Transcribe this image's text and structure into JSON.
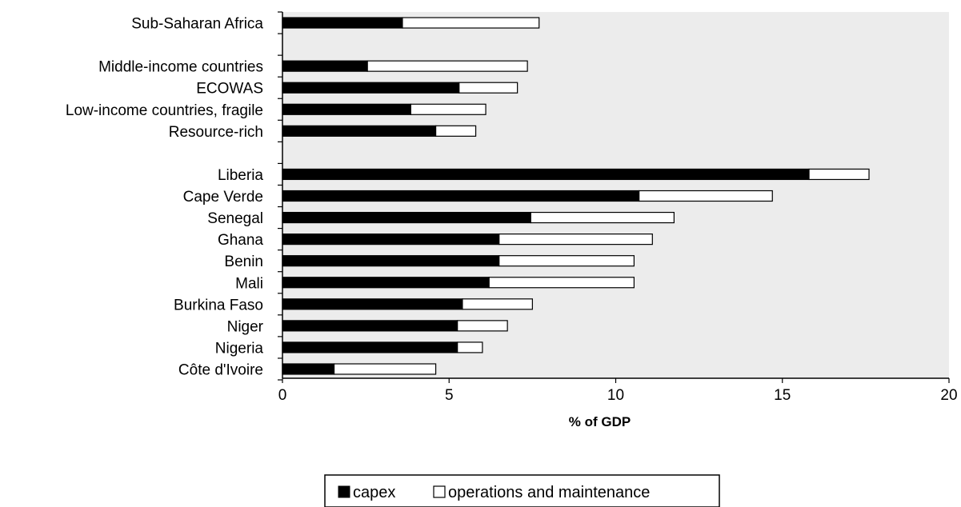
{
  "chart_data": {
    "type": "bar",
    "orientation": "horizontal",
    "stacked": true,
    "categories": [
      "Sub-Saharan Africa",
      "",
      "Middle-income countries",
      "ECOWAS",
      "Low-income countries, fragile",
      "Resource-rich",
      "",
      "Liberia",
      "Cape Verde",
      "Senegal",
      "Ghana",
      "Benin",
      "Mali",
      "Burkina Faso",
      "Niger",
      "Nigeria",
      "Côte d'Ivoire"
    ],
    "series": [
      {
        "name": "capex",
        "color": "#000000",
        "values": [
          3.6,
          null,
          2.55,
          5.3,
          3.85,
          4.6,
          null,
          15.8,
          10.7,
          7.45,
          6.5,
          6.5,
          6.2,
          5.4,
          5.25,
          5.25,
          1.55
        ]
      },
      {
        "name": "operations and maintenance",
        "color": "#ffffff",
        "values": [
          4.1,
          null,
          4.8,
          1.75,
          2.25,
          1.2,
          null,
          1.8,
          4.0,
          4.3,
          4.6,
          4.05,
          4.35,
          2.1,
          1.5,
          0.75,
          3.05
        ]
      }
    ],
    "xlabel": "% of GDP",
    "xlim": [
      0,
      20
    ],
    "xticks": [
      0,
      5,
      10,
      15,
      20
    ],
    "plot_background": "#ececec",
    "grid": false,
    "legend": "bottom"
  }
}
